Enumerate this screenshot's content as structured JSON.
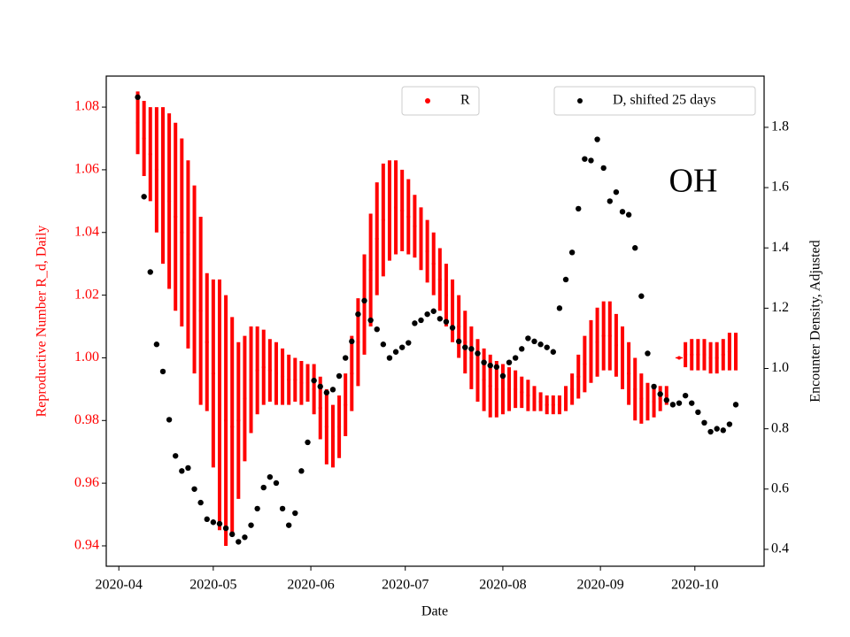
{
  "chart_data": {
    "type": "errorbar_scatter",
    "xlabel": "Date",
    "ylabel": "Reproductive Number R_d, Daily",
    "y2label": "Encounter Density, Adjusted",
    "annotation": "OH",
    "x": [
      "2020-04-07",
      "2020-04-09",
      "2020-04-11",
      "2020-04-13",
      "2020-04-15",
      "2020-04-17",
      "2020-04-19",
      "2020-04-21",
      "2020-04-23",
      "2020-04-25",
      "2020-04-27",
      "2020-04-29",
      "2020-05-01",
      "2020-05-03",
      "2020-05-05",
      "2020-05-07",
      "2020-05-09",
      "2020-05-11",
      "2020-05-13",
      "2020-05-15",
      "2020-05-17",
      "2020-05-19",
      "2020-05-21",
      "2020-05-23",
      "2020-05-25",
      "2020-05-27",
      "2020-05-29",
      "2020-05-31",
      "2020-06-02",
      "2020-06-04",
      "2020-06-06",
      "2020-06-08",
      "2020-06-10",
      "2020-06-12",
      "2020-06-14",
      "2020-06-16",
      "2020-06-18",
      "2020-06-20",
      "2020-06-22",
      "2020-06-24",
      "2020-06-26",
      "2020-06-28",
      "2020-06-30",
      "2020-07-02",
      "2020-07-04",
      "2020-07-06",
      "2020-07-08",
      "2020-07-10",
      "2020-07-12",
      "2020-07-14",
      "2020-07-16",
      "2020-07-18",
      "2020-07-20",
      "2020-07-22",
      "2020-07-24",
      "2020-07-26",
      "2020-07-28",
      "2020-07-30",
      "2020-08-01",
      "2020-08-03",
      "2020-08-05",
      "2020-08-07",
      "2020-08-09",
      "2020-08-11",
      "2020-08-13",
      "2020-08-15",
      "2020-08-17",
      "2020-08-19",
      "2020-08-21",
      "2020-08-23",
      "2020-08-25",
      "2020-08-27",
      "2020-08-29",
      "2020-08-31",
      "2020-09-02",
      "2020-09-04",
      "2020-09-06",
      "2020-09-08",
      "2020-09-10",
      "2020-09-12",
      "2020-09-14",
      "2020-09-16",
      "2020-09-18",
      "2020-09-20",
      "2020-09-22",
      "2020-09-24",
      "2020-09-26",
      "2020-09-28",
      "2020-09-30",
      "2020-10-02",
      "2020-10-04",
      "2020-10-06",
      "2020-10-08",
      "2020-10-10",
      "2020-10-12",
      "2020-10-14"
    ],
    "series": [
      {
        "name": "R",
        "color": "#ff0000",
        "axis": "y",
        "legend_loc": "upper center",
        "values": [
          1.075,
          1.07,
          1.065,
          1.06,
          1.055,
          1.05,
          1.045,
          1.04,
          1.033,
          1.025,
          1.015,
          1.005,
          0.995,
          0.985,
          0.98,
          0.978,
          0.98,
          0.987,
          0.993,
          0.996,
          0.997,
          0.996,
          0.995,
          0.994,
          0.993,
          0.993,
          0.992,
          0.992,
          0.99,
          0.984,
          0.978,
          0.975,
          0.978,
          0.985,
          0.995,
          1.005,
          1.017,
          1.028,
          1.038,
          1.044,
          1.047,
          1.048,
          1.047,
          1.045,
          1.042,
          1.038,
          1.034,
          1.03,
          1.025,
          1.02,
          1.015,
          1.01,
          1.005,
          1.0,
          0.996,
          0.993,
          0.991,
          0.99,
          0.99,
          0.99,
          0.99,
          0.989,
          0.988,
          0.987,
          0.986,
          0.985,
          0.985,
          0.985,
          0.987,
          0.99,
          0.994,
          0.998,
          1.002,
          1.005,
          1.007,
          1.007,
          1.004,
          1.0,
          0.995,
          0.99,
          0.987,
          0.986,
          0.986,
          0.987,
          0.988,
          null,
          1.0,
          1.001,
          1.001,
          1.001,
          1.001,
          1.0,
          1.0,
          1.001,
          1.002,
          1.002
        ],
        "errors": [
          0.01,
          0.012,
          0.015,
          0.02,
          0.025,
          0.028,
          0.03,
          0.03,
          0.03,
          0.03,
          0.03,
          0.022,
          0.03,
          0.04,
          0.04,
          0.035,
          0.025,
          0.02,
          0.017,
          0.014,
          0.012,
          0.01,
          0.01,
          0.009,
          0.008,
          0.007,
          0.007,
          0.006,
          0.008,
          0.01,
          0.012,
          0.01,
          0.01,
          0.01,
          0.012,
          0.014,
          0.016,
          0.018,
          0.018,
          0.018,
          0.016,
          0.015,
          0.013,
          0.012,
          0.01,
          0.01,
          0.01,
          0.01,
          0.01,
          0.01,
          0.01,
          0.01,
          0.01,
          0.01,
          0.01,
          0.01,
          0.01,
          0.009,
          0.008,
          0.007,
          0.006,
          0.005,
          0.005,
          0.004,
          0.003,
          0.003,
          0.003,
          0.003,
          0.004,
          0.005,
          0.007,
          0.009,
          0.01,
          0.011,
          0.011,
          0.011,
          0.01,
          0.01,
          0.01,
          0.01,
          0.008,
          0.006,
          0.005,
          0.004,
          0.003,
          null,
          0,
          0.004,
          0.005,
          0.005,
          0.005,
          0.005,
          0.005,
          0.005,
          0.006,
          0.006
        ]
      },
      {
        "name": "D, shifted 25 days",
        "color": "#000000",
        "axis": "y2",
        "legend_loc": "upper right",
        "values": [
          1.9,
          1.57,
          1.32,
          1.08,
          0.99,
          0.83,
          0.71,
          0.66,
          0.67,
          0.6,
          0.555,
          0.5,
          0.49,
          0.485,
          0.47,
          0.45,
          0.425,
          0.44,
          0.48,
          0.535,
          0.605,
          0.64,
          0.62,
          0.535,
          0.48,
          0.52,
          0.66,
          0.755,
          0.96,
          0.94,
          0.92,
          0.93,
          0.975,
          1.035,
          1.09,
          1.18,
          1.225,
          1.16,
          1.13,
          1.08,
          1.035,
          1.055,
          1.07,
          1.085,
          1.15,
          1.16,
          1.18,
          1.19,
          1.165,
          1.155,
          1.135,
          1.09,
          1.07,
          1.065,
          1.05,
          1.02,
          1.01,
          1.005,
          0.975,
          1.02,
          1.035,
          1.065,
          1.1,
          1.09,
          1.08,
          1.07,
          1.055,
          1.2,
          1.295,
          1.385,
          1.53,
          1.695,
          1.69,
          1.76,
          1.665,
          1.555,
          1.585,
          1.52,
          1.51,
          1.4,
          1.24,
          1.05,
          0.94,
          0.915,
          0.895,
          0.88,
          0.885,
          0.91,
          0.885,
          0.855,
          0.82,
          0.79,
          0.8,
          0.795,
          0.815,
          0.88
        ]
      }
    ],
    "xlim": [
      "2020-03-28",
      "2020-10-23"
    ],
    "xticks": [
      {
        "value": "2020-04-01",
        "label": "2020-04"
      },
      {
        "value": "2020-05-01",
        "label": "2020-05"
      },
      {
        "value": "2020-06-01",
        "label": "2020-06"
      },
      {
        "value": "2020-07-01",
        "label": "2020-07"
      },
      {
        "value": "2020-08-01",
        "label": "2020-08"
      },
      {
        "value": "2020-09-01",
        "label": "2020-09"
      },
      {
        "value": "2020-10-01",
        "label": "2020-10"
      }
    ],
    "ylim": [
      0.9335,
      1.0899
    ],
    "yticks": [
      0.94,
      0.96,
      0.98,
      {
        "value": 1,
        "label": "1.00"
      },
      1.02,
      1.04,
      1.06,
      1.08
    ],
    "y2lim": [
      0.344,
      1.97
    ],
    "y2ticks": [
      0.4,
      0.6,
      0.8,
      {
        "value": 1,
        "label": "1.0"
      },
      1.2,
      1.4,
      1.6,
      1.8
    ],
    "ylabel_color": "#ff0000"
  }
}
